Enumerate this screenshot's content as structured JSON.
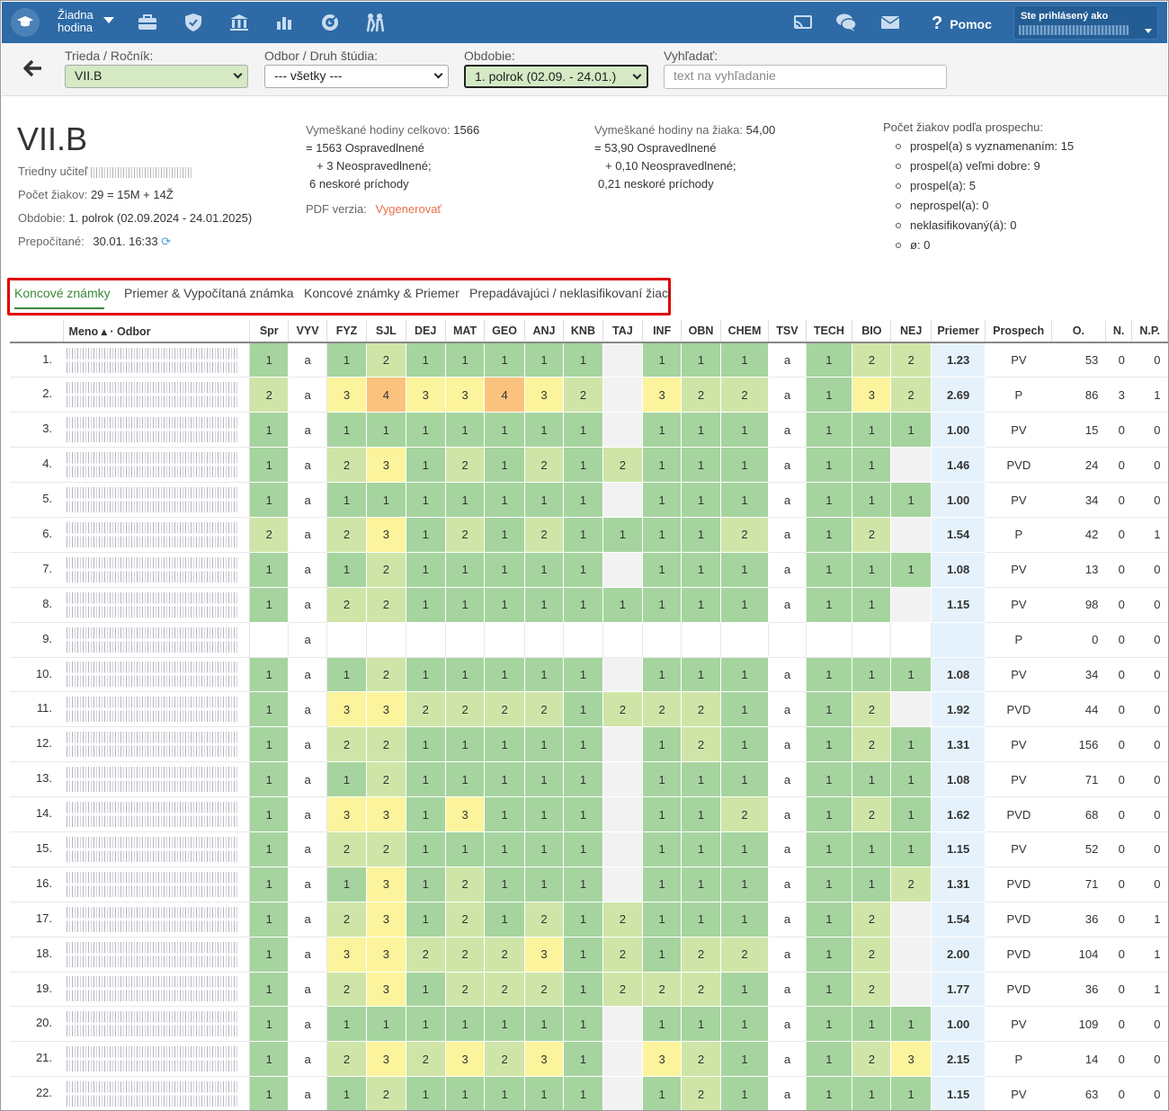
{
  "topnav": {
    "hour_label_1": "Žiadna",
    "hour_label_2": "hodina",
    "help_label": "Pomoc",
    "user_label": "Ste prihlásený ako",
    "icons": [
      "school-logo-icon",
      "briefcase-icon",
      "shield-icon",
      "bank-icon",
      "chart-icon",
      "target-icon",
      "students-icon",
      "cast-icon",
      "chat-icon",
      "mail-icon",
      "help-icon"
    ]
  },
  "filters": {
    "class_label": "Trieda / Ročník:",
    "class_value": "VII.B",
    "branch_label": "Odbor / Druh štúdia:",
    "branch_value": "--- všetky ---",
    "period_label": "Obdobie:",
    "period_value": "1. polrok (02.09. - 24.01.)",
    "search_label": "Vyhľadať:",
    "search_placeholder": "text na vyhľadanie"
  },
  "info": {
    "title": "VII.B",
    "teacher_label": "Triedny učiteľ",
    "students_label": "Počet žiakov:",
    "students_value": "29 = 15M + 14Ž",
    "period_label": "Obdobie:",
    "period_value": "1. polrok (02.09.2024 - 24.01.2025)",
    "recalc_label": "Prepočítané:",
    "recalc_value": "30.01. 16:33",
    "missed_total_label": "Vymeškané hodiny celkovo:",
    "missed_total_value": "1566",
    "missed_total_excused": "= 1563 Ospravedlnené",
    "missed_total_unexcused": "+ 3 Neospravedlnené;",
    "missed_total_late": "6 neskoré príchody",
    "missed_per_label": "Vymeškané hodiny na žiaka:",
    "missed_per_value": "54,00",
    "missed_per_excused": "= 53,90 Ospravedlnené",
    "missed_per_unexcused": "+ 0,10 Neospravedlnené;",
    "missed_per_late": "0,21 neskoré príchody",
    "pdf_label": "PDF verzia:",
    "pdf_link": "Vygenerovať",
    "progress_label": "Počet žiakov podľa prospechu:",
    "progress_items": [
      "prospel(a) s vyznamenaním: 15",
      "prospel(a) veľmi dobre: 9",
      "prospel(a): 5",
      "neprospel(a): 0",
      "neklasifikovaný(á): 0",
      "ø: 0"
    ]
  },
  "tabs": [
    "Koncové známky",
    "Priemer & Vypočítaná známka",
    "Koncové známky & Priemer",
    "Prepadávajúci / neklasifikovaní žiaci"
  ],
  "table": {
    "name_header": "Meno ▴ · Odbor",
    "subjects": [
      "Spr",
      "VYV",
      "FYZ",
      "SJL",
      "DEJ",
      "MAT",
      "GEO",
      "ANJ",
      "KNB",
      "TAJ",
      "INF",
      "OBN",
      "CHEM",
      "TSV",
      "TECH",
      "BIO",
      "NEJ"
    ],
    "tail_headers": [
      "Priemer",
      "Prospech",
      "O.",
      "N.",
      "N.P."
    ],
    "rows": [
      {
        "i": "1.",
        "g": [
          "1",
          "a",
          "1",
          "2",
          "1",
          "1",
          "1",
          "1",
          "1",
          "",
          "1",
          "1",
          "1",
          "a",
          "1",
          "2",
          "2"
        ],
        "avg": "1.23",
        "p": "PV",
        "o": "53",
        "n": "0",
        "np": "0"
      },
      {
        "i": "2.",
        "g": [
          "2",
          "a",
          "3",
          "4",
          "3",
          "3",
          "4",
          "3",
          "2",
          "",
          "3",
          "2",
          "2",
          "a",
          "1",
          "3",
          "2"
        ],
        "avg": "2.69",
        "p": "P",
        "o": "86",
        "n": "3",
        "np": "1"
      },
      {
        "i": "3.",
        "g": [
          "1",
          "a",
          "1",
          "1",
          "1",
          "1",
          "1",
          "1",
          "1",
          "",
          "1",
          "1",
          "1",
          "a",
          "1",
          "1",
          "1"
        ],
        "avg": "1.00",
        "p": "PV",
        "o": "15",
        "n": "0",
        "np": "0"
      },
      {
        "i": "4.",
        "g": [
          "1",
          "a",
          "2",
          "3",
          "1",
          "2",
          "1",
          "2",
          "1",
          "2",
          "1",
          "1",
          "1",
          "a",
          "1",
          "1",
          ""
        ],
        "avg": "1.46",
        "p": "PVD",
        "o": "24",
        "n": "0",
        "np": "0"
      },
      {
        "i": "5.",
        "g": [
          "1",
          "a",
          "1",
          "1",
          "1",
          "1",
          "1",
          "1",
          "1",
          "",
          "1",
          "1",
          "1",
          "a",
          "1",
          "1",
          "1"
        ],
        "avg": "1.00",
        "p": "PV",
        "o": "34",
        "n": "0",
        "np": "0"
      },
      {
        "i": "6.",
        "g": [
          "2",
          "a",
          "2",
          "3",
          "1",
          "2",
          "1",
          "2",
          "1",
          "1",
          "1",
          "1",
          "2",
          "a",
          "1",
          "2",
          ""
        ],
        "avg": "1.54",
        "p": "P",
        "o": "42",
        "n": "0",
        "np": "1"
      },
      {
        "i": "7.",
        "g": [
          "1",
          "a",
          "1",
          "2",
          "1",
          "1",
          "1",
          "1",
          "1",
          "",
          "1",
          "1",
          "1",
          "a",
          "1",
          "1",
          "1"
        ],
        "avg": "1.08",
        "p": "PV",
        "o": "13",
        "n": "0",
        "np": "0"
      },
      {
        "i": "8.",
        "g": [
          "1",
          "a",
          "2",
          "2",
          "1",
          "1",
          "1",
          "1",
          "1",
          "1",
          "1",
          "1",
          "1",
          "a",
          "1",
          "1",
          ""
        ],
        "avg": "1.15",
        "p": "PV",
        "o": "98",
        "n": "0",
        "np": "0"
      },
      {
        "i": "9.",
        "g": [
          "",
          "a",
          "",
          "",
          "",
          "",
          "",
          "",
          "",
          "",
          "",
          "",
          "",
          "",
          "",
          "",
          ""
        ],
        "avg": "",
        "p": "P",
        "o": "0",
        "n": "0",
        "np": "0",
        "blank": true
      },
      {
        "i": "10.",
        "g": [
          "1",
          "a",
          "1",
          "2",
          "1",
          "1",
          "1",
          "1",
          "1",
          "",
          "1",
          "1",
          "1",
          "a",
          "1",
          "1",
          "1"
        ],
        "avg": "1.08",
        "p": "PV",
        "o": "34",
        "n": "0",
        "np": "0"
      },
      {
        "i": "11.",
        "g": [
          "1",
          "a",
          "3",
          "3",
          "2",
          "2",
          "2",
          "2",
          "1",
          "2",
          "2",
          "2",
          "1",
          "a",
          "1",
          "2",
          ""
        ],
        "avg": "1.92",
        "p": "PVD",
        "o": "44",
        "n": "0",
        "np": "0"
      },
      {
        "i": "12.",
        "g": [
          "1",
          "a",
          "2",
          "2",
          "1",
          "1",
          "1",
          "1",
          "1",
          "",
          "1",
          "2",
          "1",
          "a",
          "1",
          "2",
          "1"
        ],
        "avg": "1.31",
        "p": "PV",
        "o": "156",
        "n": "0",
        "np": "0"
      },
      {
        "i": "13.",
        "g": [
          "1",
          "a",
          "1",
          "2",
          "1",
          "1",
          "1",
          "1",
          "1",
          "",
          "1",
          "1",
          "1",
          "a",
          "1",
          "1",
          "1"
        ],
        "avg": "1.08",
        "p": "PV",
        "o": "71",
        "n": "0",
        "np": "0"
      },
      {
        "i": "14.",
        "g": [
          "1",
          "a",
          "3",
          "3",
          "1",
          "3",
          "1",
          "1",
          "1",
          "",
          "1",
          "1",
          "2",
          "a",
          "1",
          "2",
          "1"
        ],
        "avg": "1.62",
        "p": "PVD",
        "o": "68",
        "n": "0",
        "np": "0"
      },
      {
        "i": "15.",
        "g": [
          "1",
          "a",
          "2",
          "2",
          "1",
          "1",
          "1",
          "1",
          "1",
          "",
          "1",
          "1",
          "1",
          "a",
          "1",
          "1",
          "1"
        ],
        "avg": "1.15",
        "p": "PV",
        "o": "52",
        "n": "0",
        "np": "0"
      },
      {
        "i": "16.",
        "g": [
          "1",
          "a",
          "1",
          "3",
          "1",
          "2",
          "1",
          "1",
          "1",
          "",
          "1",
          "1",
          "1",
          "a",
          "1",
          "1",
          "2"
        ],
        "avg": "1.31",
        "p": "PVD",
        "o": "71",
        "n": "0",
        "np": "0"
      },
      {
        "i": "17.",
        "g": [
          "1",
          "a",
          "2",
          "3",
          "1",
          "2",
          "1",
          "2",
          "1",
          "2",
          "1",
          "1",
          "1",
          "a",
          "1",
          "2",
          ""
        ],
        "avg": "1.54",
        "p": "PVD",
        "o": "36",
        "n": "0",
        "np": "1"
      },
      {
        "i": "18.",
        "g": [
          "1",
          "a",
          "3",
          "3",
          "2",
          "2",
          "2",
          "3",
          "1",
          "2",
          "1",
          "2",
          "2",
          "a",
          "1",
          "2",
          ""
        ],
        "avg": "2.00",
        "p": "PVD",
        "o": "104",
        "n": "0",
        "np": "1"
      },
      {
        "i": "19.",
        "g": [
          "1",
          "a",
          "2",
          "3",
          "1",
          "2",
          "2",
          "2",
          "1",
          "2",
          "2",
          "2",
          "1",
          "a",
          "1",
          "2",
          ""
        ],
        "avg": "1.77",
        "p": "PVD",
        "o": "36",
        "n": "0",
        "np": "1"
      },
      {
        "i": "20.",
        "g": [
          "1",
          "a",
          "1",
          "1",
          "1",
          "1",
          "1",
          "1",
          "1",
          "",
          "1",
          "1",
          "1",
          "a",
          "1",
          "1",
          "1"
        ],
        "avg": "1.00",
        "p": "PV",
        "o": "109",
        "n": "0",
        "np": "0"
      },
      {
        "i": "21.",
        "g": [
          "1",
          "a",
          "2",
          "3",
          "2",
          "3",
          "2",
          "3",
          "1",
          "",
          "3",
          "2",
          "1",
          "a",
          "1",
          "2",
          "3"
        ],
        "avg": "2.15",
        "p": "P",
        "o": "14",
        "n": "0",
        "np": "0"
      },
      {
        "i": "22.",
        "g": [
          "1",
          "a",
          "1",
          "2",
          "1",
          "1",
          "1",
          "1",
          "1",
          "",
          "1",
          "2",
          "1",
          "a",
          "1",
          "1",
          "1"
        ],
        "avg": "1.15",
        "p": "PV",
        "o": "63",
        "n": "0",
        "np": "0"
      }
    ]
  },
  "colors": {
    "nav": "#2d6aa6",
    "grade1": "#a6d49f",
    "grade2": "#cfe5a8",
    "grade3": "#fcf49c",
    "grade4": "#fbc27e",
    "avg_bg": "#e6f2fb",
    "tab_active": "#3a8a3a",
    "highlight_box": "#e00000",
    "pdf_link": "#e8704b"
  }
}
